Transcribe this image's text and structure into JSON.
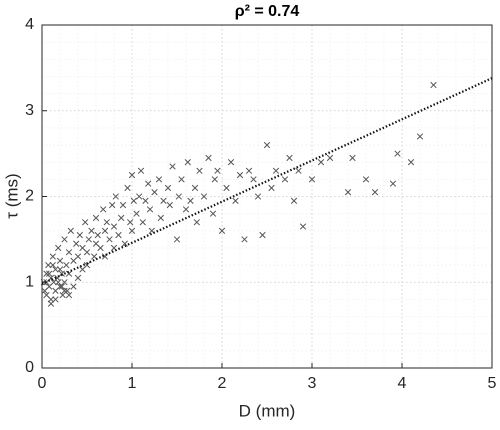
{
  "chart_data": {
    "type": "scatter",
    "title": "ρ² = 0.74",
    "xlabel": "D (mm)",
    "ylabel": "τ (ms)",
    "xlim": [
      0,
      5
    ],
    "ylim": [
      0,
      4
    ],
    "xticks": [
      0,
      1,
      2,
      3,
      4,
      5
    ],
    "yticks": [
      0,
      1,
      2,
      3,
      4
    ],
    "xminorticks": [
      0.2,
      0.4,
      0.6,
      0.8,
      1.2,
      1.4,
      1.6,
      1.8,
      2.2,
      2.4,
      2.6,
      2.8,
      3.2,
      3.4,
      3.6,
      3.8,
      4.2,
      4.4,
      4.6,
      4.8
    ],
    "yminorticks": [
      0.2,
      0.4,
      0.6,
      0.8,
      1.2,
      1.4,
      1.6,
      1.8,
      2.2,
      2.4,
      2.6,
      2.8,
      3.2,
      3.4,
      3.6,
      3.8
    ],
    "grid": true,
    "series": [
      {
        "kind": "scatter",
        "color": "#555555",
        "x": [
          0.02,
          0.03,
          0.05,
          0.05,
          0.07,
          0.08,
          0.1,
          0.1,
          0.12,
          0.13,
          0.15,
          0.15,
          0.17,
          0.18,
          0.2,
          0.2,
          0.22,
          0.23,
          0.25,
          0.25,
          0.27,
          0.28,
          0.3,
          0.3,
          0.32,
          0.35,
          0.35,
          0.38,
          0.4,
          0.4,
          0.42,
          0.45,
          0.45,
          0.48,
          0.5,
          0.5,
          0.52,
          0.55,
          0.58,
          0.6,
          0.6,
          0.62,
          0.65,
          0.68,
          0.7,
          0.7,
          0.72,
          0.75,
          0.78,
          0.8,
          0.8,
          0.82,
          0.85,
          0.88,
          0.9,
          0.92,
          0.95,
          0.98,
          1.0,
          1.0,
          1.02,
          1.05,
          1.08,
          1.1,
          1.12,
          1.15,
          1.18,
          1.2,
          1.22,
          1.25,
          1.3,
          1.32,
          1.35,
          1.4,
          1.42,
          1.45,
          1.5,
          1.52,
          1.55,
          1.6,
          1.62,
          1.65,
          1.7,
          1.72,
          1.75,
          1.8,
          1.85,
          1.9,
          1.92,
          1.95,
          2.0,
          2.05,
          2.1,
          2.15,
          2.2,
          2.25,
          2.3,
          2.35,
          2.4,
          2.45,
          2.5,
          2.55,
          2.6,
          2.7,
          2.75,
          2.8,
          2.85,
          2.9,
          3.0,
          3.1,
          3.2,
          3.4,
          3.45,
          3.6,
          3.7,
          3.9,
          3.95,
          4.1,
          4.2,
          4.35,
          0.1,
          0.15,
          0.05,
          0.2,
          0.25,
          0.12,
          0.08,
          0.3,
          0.18,
          0.22
        ],
        "values": [
          1.0,
          0.9,
          1.1,
          0.85,
          1.2,
          0.95,
          1.05,
          0.8,
          1.3,
          1.0,
          0.9,
          1.15,
          1.05,
          1.4,
          0.95,
          1.25,
          1.1,
          0.85,
          1.5,
          1.0,
          1.2,
          0.9,
          1.35,
          1.1,
          1.6,
          1.25,
          0.95,
          1.45,
          1.3,
          1.05,
          1.55,
          1.4,
          1.15,
          1.7,
          1.35,
          1.2,
          1.5,
          1.6,
          1.3,
          1.75,
          1.45,
          1.55,
          1.4,
          1.85,
          1.6,
          1.3,
          1.7,
          1.5,
          1.9,
          1.65,
          1.4,
          2.0,
          1.55,
          1.75,
          1.9,
          1.45,
          2.1,
          1.7,
          2.25,
          1.6,
          1.95,
          1.8,
          2.0,
          2.3,
          1.7,
          1.95,
          2.15,
          1.85,
          1.6,
          2.05,
          2.2,
          1.75,
          1.95,
          2.1,
          1.9,
          2.35,
          1.5,
          2.0,
          2.2,
          1.85,
          2.4,
          1.95,
          2.1,
          1.7,
          2.3,
          2.0,
          2.45,
          1.8,
          2.2,
          2.3,
          1.6,
          2.1,
          2.4,
          1.95,
          2.25,
          1.5,
          2.3,
          2.2,
          2.0,
          1.55,
          2.6,
          2.1,
          2.3,
          2.2,
          2.45,
          1.95,
          2.3,
          1.65,
          2.2,
          2.4,
          2.45,
          2.05,
          2.45,
          2.2,
          2.05,
          2.15,
          2.5,
          2.4,
          2.7,
          3.3,
          0.75,
          0.8,
          1.0,
          1.15,
          0.9,
          1.2,
          1.1,
          0.85,
          1.0,
          0.95
        ]
      },
      {
        "kind": "line",
        "color": "#111111",
        "x": [
          0,
          5
        ],
        "values": [
          0.98,
          3.38
        ]
      }
    ]
  }
}
